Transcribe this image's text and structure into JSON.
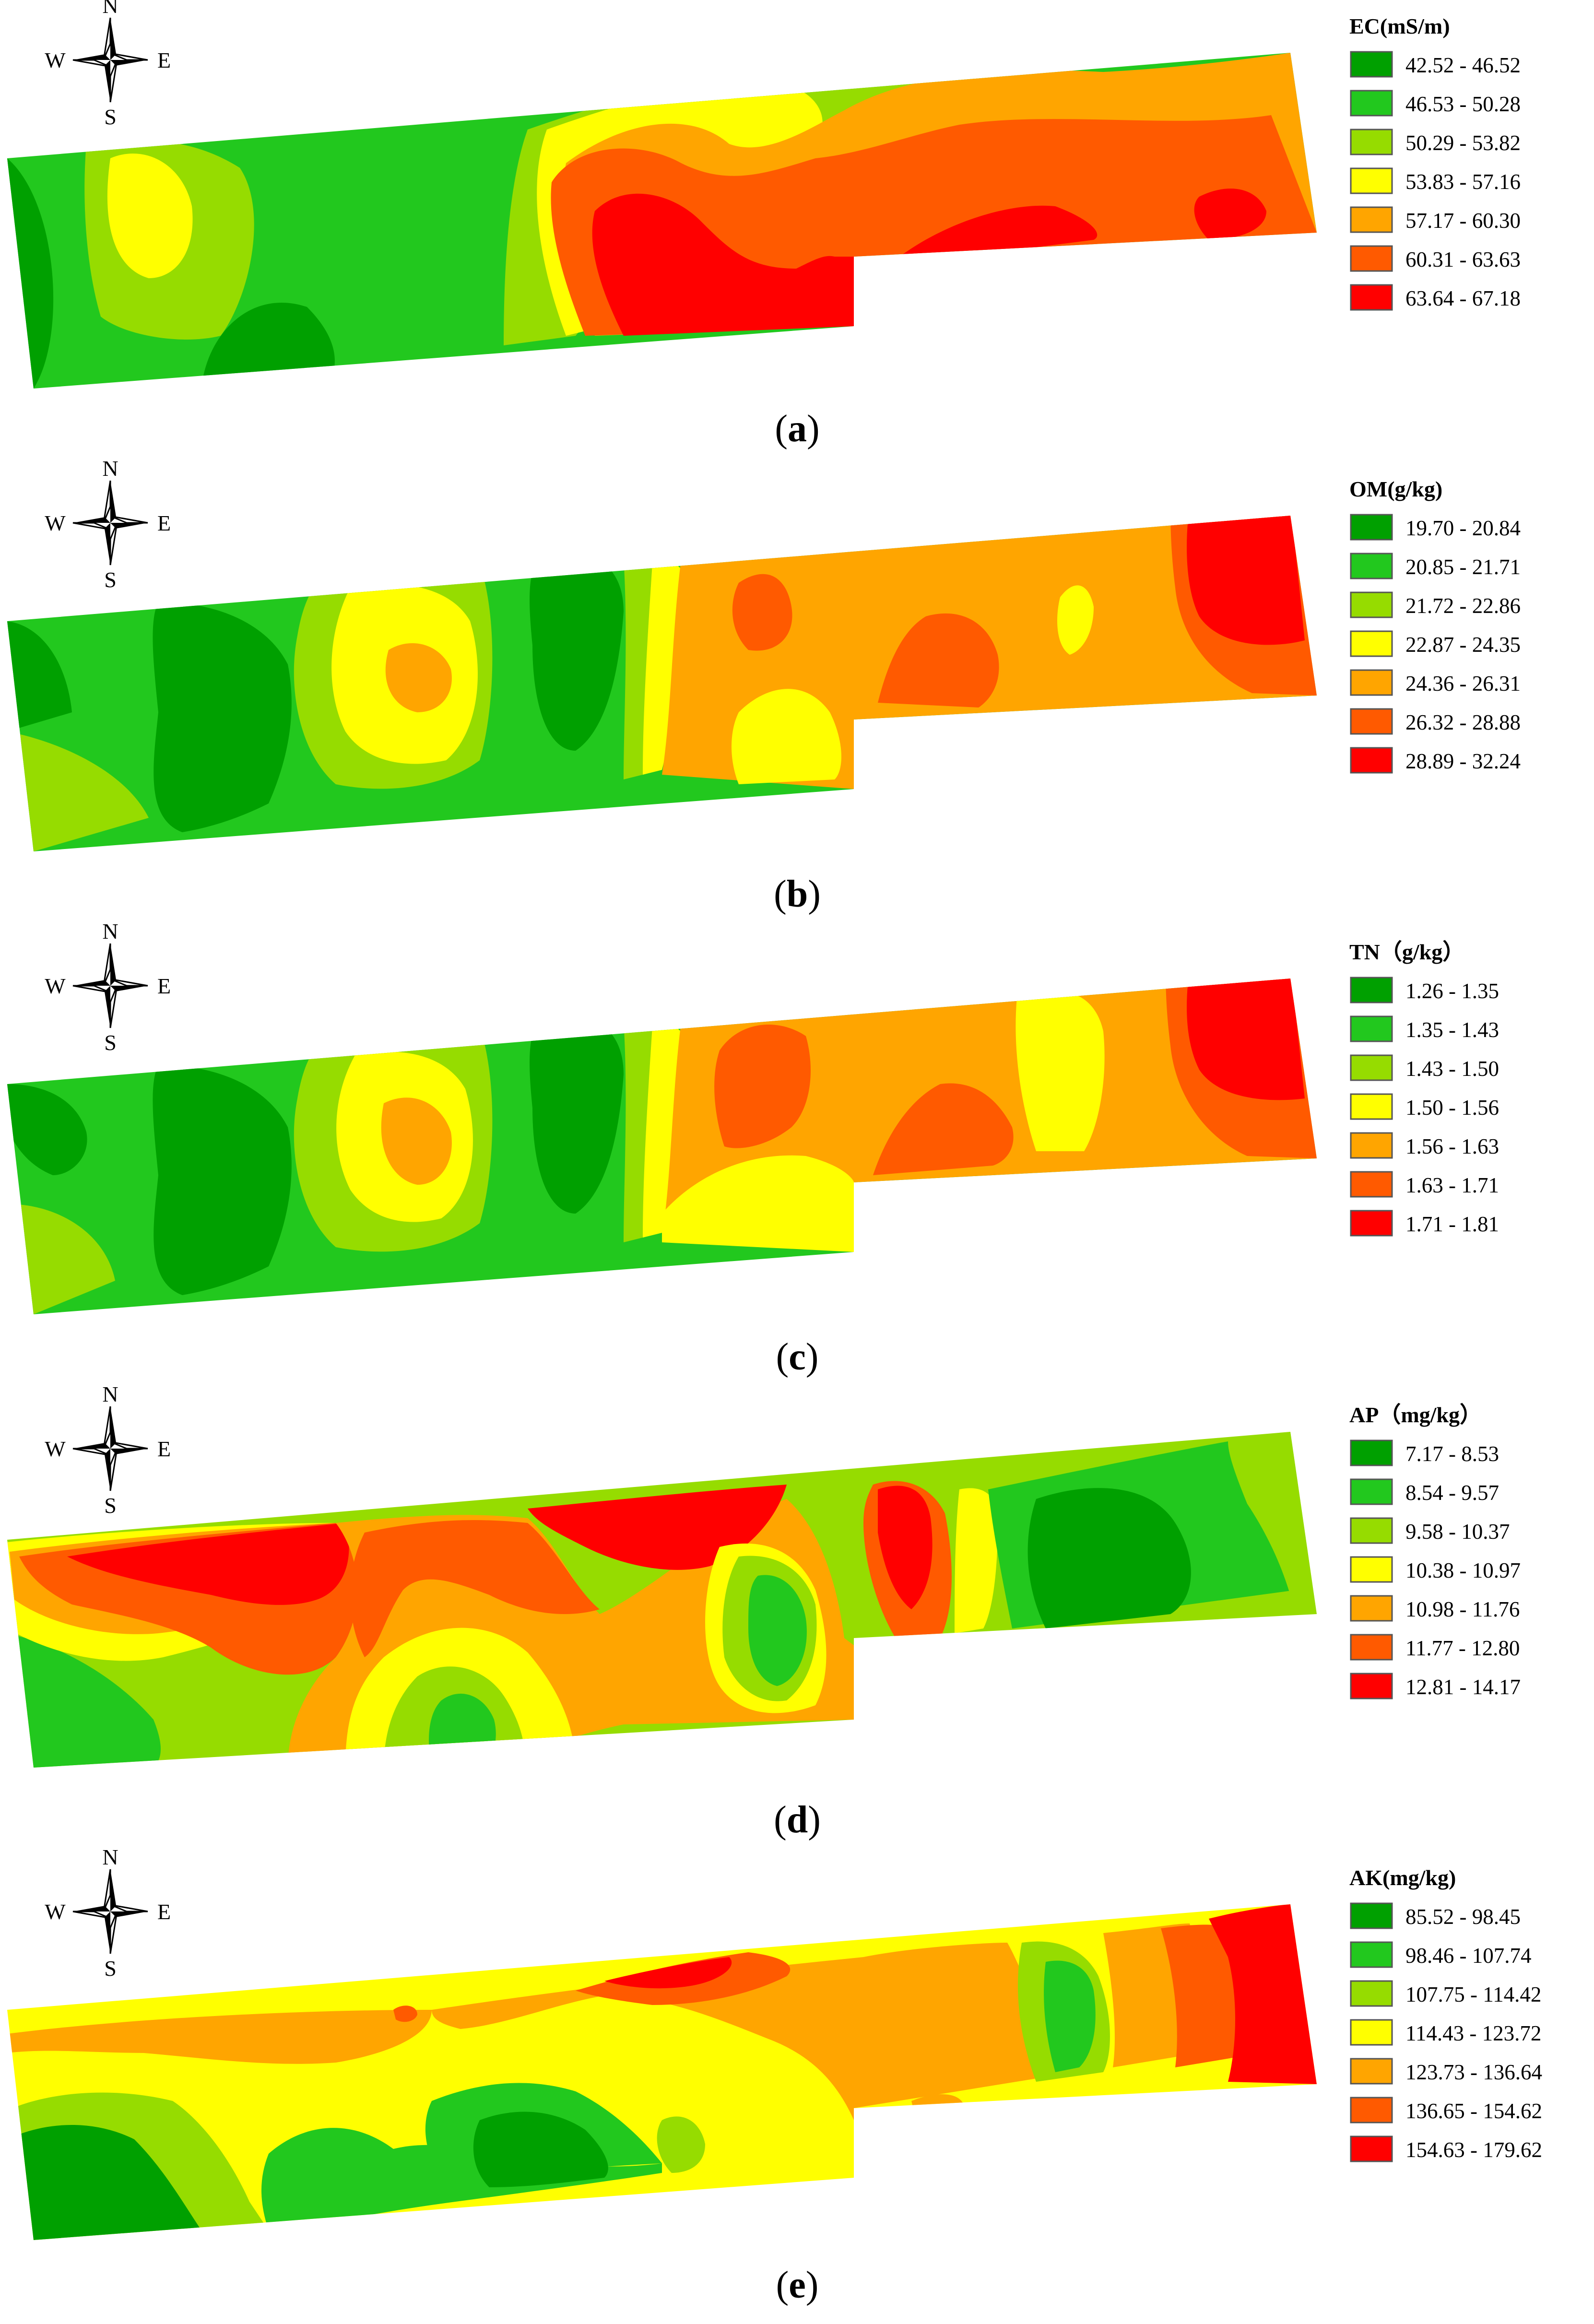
{
  "palette": [
    "#00A000",
    "#22C81E",
    "#96DC00",
    "#FFFF00",
    "#FFA500",
    "#FF5A00",
    "#FF0000"
  ],
  "compass": {
    "north": "N",
    "south": "S",
    "east": "E",
    "west": "W"
  },
  "panels": [
    {
      "id": "a",
      "caption": "(a)",
      "caption_letter": "a",
      "legend_title": "EC(mS/m)",
      "classes": [
        "42.52 - 46.52",
        "46.53 - 50.28",
        "50.29 - 53.82",
        "53.83 - 57.16",
        "57.17 - 60.30",
        "60.31 - 63.63",
        "63.64 - 67.18"
      ]
    },
    {
      "id": "b",
      "caption": "(b)",
      "caption_letter": "b",
      "legend_title": "OM(g/kg)",
      "classes": [
        "19.70 - 20.84",
        "20.85 - 21.71",
        "21.72 - 22.86",
        "22.87 - 24.35",
        "24.36 - 26.31",
        "26.32 - 28.88",
        "28.89 - 32.24"
      ]
    },
    {
      "id": "c",
      "caption": "(c)",
      "caption_letter": "c",
      "legend_title": "TN（g/kg）",
      "classes": [
        "1.26 - 1.35",
        "1.35 - 1.43",
        "1.43 - 1.50",
        "1.50 - 1.56",
        "1.56 - 1.63",
        "1.63 - 1.71",
        "1.71 - 1.81"
      ]
    },
    {
      "id": "d",
      "caption": "(d)",
      "caption_letter": "d",
      "legend_title": "AP（mg/kg）",
      "classes": [
        "7.17 - 8.53",
        "8.54 - 9.57",
        "9.58 - 10.37",
        "10.38 - 10.97",
        "10.98 - 11.76",
        "11.77 - 12.80",
        "12.81 - 14.17"
      ]
    },
    {
      "id": "e",
      "caption": "(e)",
      "caption_letter": "e",
      "legend_title": "AK(mg/kg)",
      "classes": [
        "85.52 - 98.45",
        "98.46 - 107.74",
        "107.75 - 114.42",
        "114.43 - 123.72",
        "123.73 - 136.64",
        "136.65 - 154.62",
        "154.63 - 179.62"
      ]
    }
  ]
}
